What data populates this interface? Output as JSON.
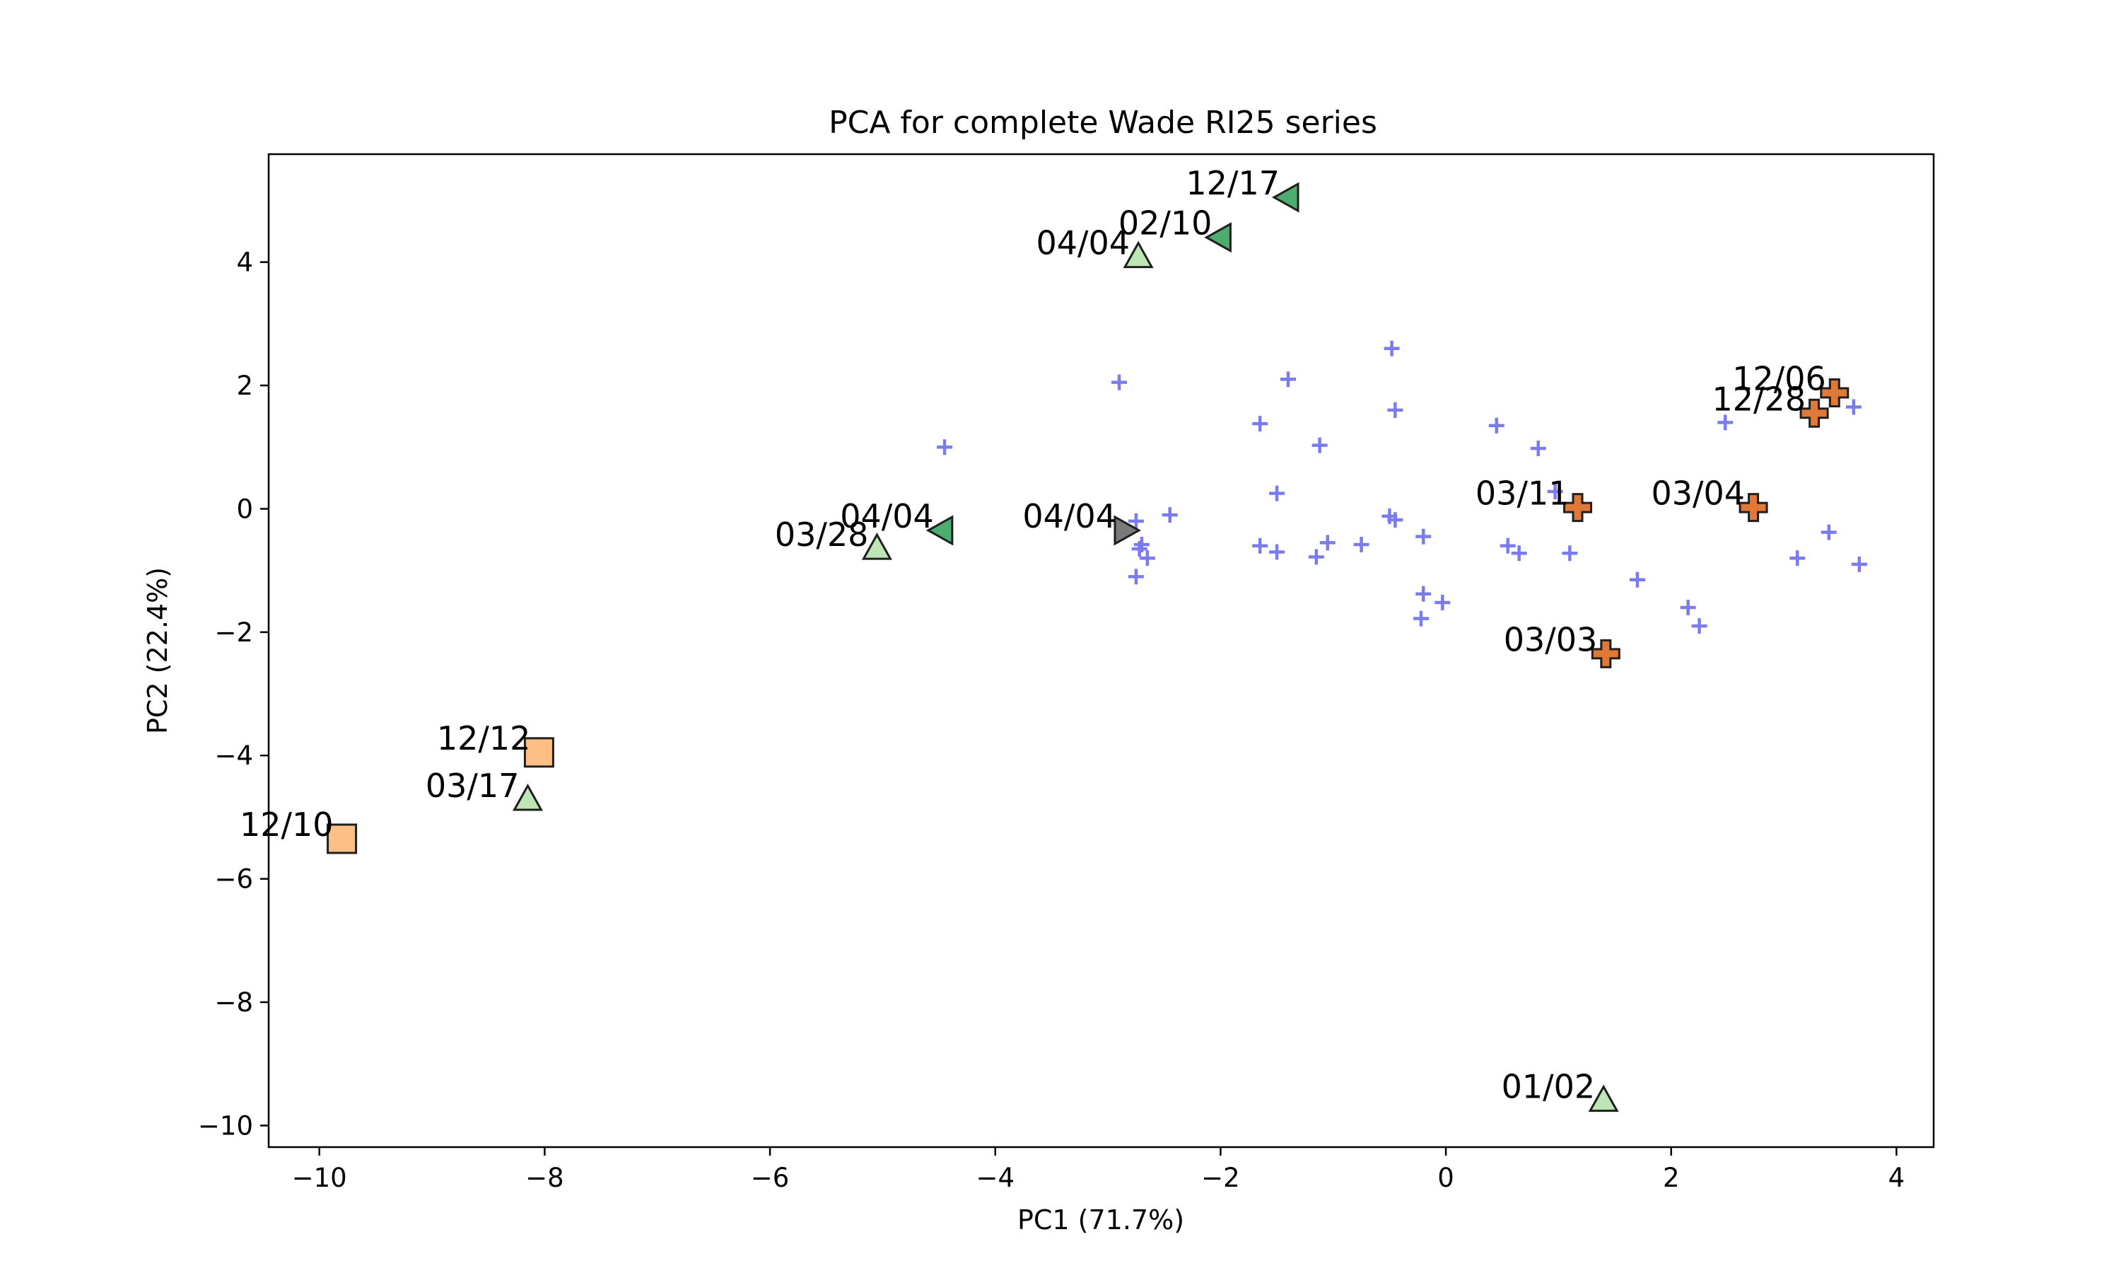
{
  "chart_data": {
    "type": "scatter",
    "title": "PCA for complete Wade RI25 series",
    "xlabel": "PC1 (71.7%)",
    "ylabel": "PC2 (22.4%)",
    "xlim": [
      -10.45,
      4.33
    ],
    "ylim": [
      -10.35,
      5.75
    ],
    "xticks": [
      -10,
      -8,
      -6,
      -4,
      -2,
      0,
      2,
      4
    ],
    "yticks": [
      -10,
      -8,
      -6,
      -4,
      -2,
      0,
      2,
      4
    ],
    "grid": false,
    "legend": "none",
    "background_points": {
      "marker": "plus",
      "color": "#7b7bf0",
      "x": [
        -4.45,
        -2.9,
        -1.65,
        -1.4,
        -1.5,
        -1.12,
        -0.48,
        -0.45,
        0.45,
        0.82,
        -0.45,
        -2.75,
        -2.65,
        -2.7,
        -2.75,
        -2.45,
        -1.65,
        -1.5,
        -1.15,
        -1.05,
        -0.75,
        -0.5,
        -0.2,
        -0.2,
        -0.22,
        -0.03,
        0.55,
        0.65,
        0.97,
        1.1,
        1.7,
        2.15,
        2.25,
        2.48,
        3.12,
        3.4,
        3.62,
        3.67,
        -2.72
      ],
      "y": [
        1.0,
        2.05,
        1.38,
        2.1,
        0.25,
        1.03,
        2.6,
        1.6,
        1.35,
        0.98,
        -0.18,
        -0.2,
        -0.8,
        -0.58,
        -1.1,
        -0.1,
        -0.6,
        -0.7,
        -0.78,
        -0.55,
        -0.58,
        -0.12,
        -0.45,
        -1.38,
        -1.78,
        -1.52,
        -0.6,
        -0.72,
        0.28,
        -0.72,
        -1.15,
        -1.6,
        -1.9,
        1.4,
        -0.8,
        -0.38,
        1.65,
        -0.9,
        -0.65
      ]
    },
    "points": [
      {
        "label": "12/17",
        "x": -1.4,
        "y": 5.05,
        "marker": "triangle-left",
        "color": "#4cad6e"
      },
      {
        "label": "02/10",
        "x": -2.0,
        "y": 4.4,
        "marker": "triangle-left",
        "color": "#4cad6e"
      },
      {
        "label": "04/04",
        "x": -2.73,
        "y": 4.08,
        "marker": "triangle-up",
        "color": "#bde6b4"
      },
      {
        "label": "04/04",
        "x": -4.47,
        "y": -0.35,
        "marker": "triangle-left",
        "color": "#4cad6e"
      },
      {
        "label": "03/28",
        "x": -5.05,
        "y": -0.65,
        "marker": "triangle-up",
        "color": "#bde6b4"
      },
      {
        "label": "04/04",
        "x": -2.85,
        "y": -0.35,
        "marker": "triangle-right",
        "color": "#7a7a7a"
      },
      {
        "label": "12/12",
        "x": -8.05,
        "y": -3.95,
        "marker": "square",
        "color": "#fdbf86"
      },
      {
        "label": "03/17",
        "x": -8.15,
        "y": -4.72,
        "marker": "triangle-up",
        "color": "#bde6b4"
      },
      {
        "label": "12/10",
        "x": -9.8,
        "y": -5.35,
        "marker": "square",
        "color": "#fdbf86"
      },
      {
        "label": "03/11",
        "x": 1.17,
        "y": 0.02,
        "marker": "plus-thick",
        "color": "#e07838"
      },
      {
        "label": "03/04",
        "x": 2.73,
        "y": 0.02,
        "marker": "plus-thick",
        "color": "#e07838"
      },
      {
        "label": "03/03",
        "x": 1.42,
        "y": -2.35,
        "marker": "plus-thick",
        "color": "#e07838"
      },
      {
        "label": "12/06",
        "x": 3.45,
        "y": 1.88,
        "marker": "plus-thick",
        "color": "#e07838"
      },
      {
        "label": "12/28",
        "x": 3.27,
        "y": 1.55,
        "marker": "plus-thick",
        "color": "#e07838"
      },
      {
        "label": "01/02",
        "x": 1.4,
        "y": -9.6,
        "marker": "triangle-up",
        "color": "#bde6b4"
      }
    ]
  }
}
